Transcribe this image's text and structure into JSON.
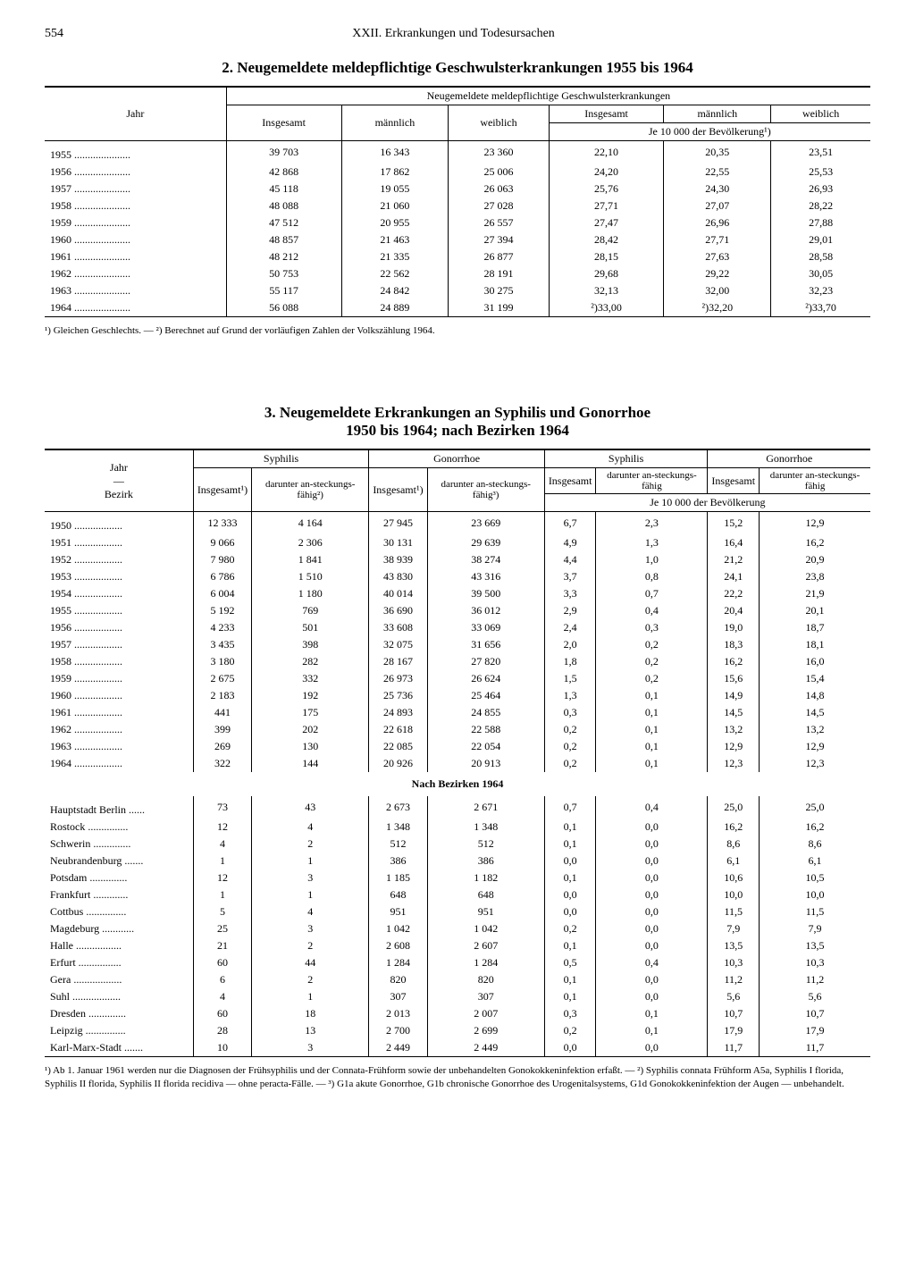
{
  "page_number": "554",
  "chapter": "XXII. Erkrankungen und Todesursachen",
  "table1": {
    "title": "2. Neugemeldete meldepflichtige Geschwulsterkrankungen 1955 bis 1964",
    "header_group": "Neugemeldete meldepflichtige Geschwulsterkrankungen",
    "col_year": "Jahr",
    "col_total": "Insgesamt",
    "col_male": "männlich",
    "col_female": "weiblich",
    "rate_header": "Je 10 000 der Bevölkerung¹)",
    "rows": [
      {
        "year": "1955",
        "dots": ".....................",
        "total": "39 703",
        "male": "16 343",
        "female": "23 360",
        "r_total": "22,10",
        "r_male": "20,35",
        "r_female": "23,51"
      },
      {
        "year": "1956",
        "dots": ".....................",
        "total": "42 868",
        "male": "17 862",
        "female": "25 006",
        "r_total": "24,20",
        "r_male": "22,55",
        "r_female": "25,53"
      },
      {
        "year": "1957",
        "dots": ".....................",
        "total": "45 118",
        "male": "19 055",
        "female": "26 063",
        "r_total": "25,76",
        "r_male": "24,30",
        "r_female": "26,93"
      },
      {
        "year": "1958",
        "dots": ".....................",
        "total": "48 088",
        "male": "21 060",
        "female": "27 028",
        "r_total": "27,71",
        "r_male": "27,07",
        "r_female": "28,22"
      },
      {
        "year": "1959",
        "dots": ".....................",
        "total": "47 512",
        "male": "20 955",
        "female": "26 557",
        "r_total": "27,47",
        "r_male": "26,96",
        "r_female": "27,88"
      },
      {
        "year": "1960",
        "dots": ".....................",
        "total": "48 857",
        "male": "21 463",
        "female": "27 394",
        "r_total": "28,42",
        "r_male": "27,71",
        "r_female": "29,01"
      },
      {
        "year": "1961",
        "dots": ".....................",
        "total": "48 212",
        "male": "21 335",
        "female": "26 877",
        "r_total": "28,15",
        "r_male": "27,63",
        "r_female": "28,58"
      },
      {
        "year": "1962",
        "dots": ".....................",
        "total": "50 753",
        "male": "22 562",
        "female": "28 191",
        "r_total": "29,68",
        "r_male": "29,22",
        "r_female": "30,05"
      },
      {
        "year": "1963",
        "dots": ".....................",
        "total": "55 117",
        "male": "24 842",
        "female": "30 275",
        "r_total": "32,13",
        "r_male": "32,00",
        "r_female": "32,23"
      },
      {
        "year": "1964",
        "dots": ".....................",
        "total": "56 088",
        "male": "24 889",
        "female": "31 199",
        "r_total": "²)33,00",
        "r_male": "²)32,20",
        "r_female": "²)33,70"
      }
    ],
    "footnote": "¹) Gleichen Geschlechts. — ²) Berechnet auf Grund der vorläufigen Zahlen der Volkszählung 1964."
  },
  "table2": {
    "title_line1": "3. Neugemeldete Erkrankungen an Syphilis und Gonorrhoe",
    "title_line2": "1950 bis 1964; nach Bezirken 1964",
    "col_year_district": "Jahr\n—\nBezirk",
    "col_year_line1": "Jahr",
    "col_year_sep": "—",
    "col_year_line2": "Bezirk",
    "group_syphilis": "Syphilis",
    "group_gonorrhoe": "Gonorrhoe",
    "col_total_sup": "Insgesamt¹)",
    "col_total": "Insgesamt",
    "col_infectious_sup": "darunter an-steckungs-fähig²)",
    "col_infectious_sup3": "darunter an-steckungs-fähig³)",
    "col_infectious": "darunter an-steckungs-fähig",
    "rate_header": "Je 10 000 der Bevölkerung",
    "years": [
      {
        "label": "1950",
        "dots": "..................",
        "s_tot": "12 333",
        "s_inf": "4 164",
        "g_tot": "27 945",
        "g_inf": "23 669",
        "rs_tot": "6,7",
        "rs_inf": "2,3",
        "rg_tot": "15,2",
        "rg_inf": "12,9"
      },
      {
        "label": "1951",
        "dots": "..................",
        "s_tot": "9 066",
        "s_inf": "2 306",
        "g_tot": "30 131",
        "g_inf": "29 639",
        "rs_tot": "4,9",
        "rs_inf": "1,3",
        "rg_tot": "16,4",
        "rg_inf": "16,2"
      },
      {
        "label": "1952",
        "dots": "..................",
        "s_tot": "7 980",
        "s_inf": "1 841",
        "g_tot": "38 939",
        "g_inf": "38 274",
        "rs_tot": "4,4",
        "rs_inf": "1,0",
        "rg_tot": "21,2",
        "rg_inf": "20,9"
      },
      {
        "label": "1953",
        "dots": "..................",
        "s_tot": "6 786",
        "s_inf": "1 510",
        "g_tot": "43 830",
        "g_inf": "43 316",
        "rs_tot": "3,7",
        "rs_inf": "0,8",
        "rg_tot": "24,1",
        "rg_inf": "23,8"
      },
      {
        "label": "1954",
        "dots": "..................",
        "s_tot": "6 004",
        "s_inf": "1 180",
        "g_tot": "40 014",
        "g_inf": "39 500",
        "rs_tot": "3,3",
        "rs_inf": "0,7",
        "rg_tot": "22,2",
        "rg_inf": "21,9"
      },
      {
        "label": "1955",
        "dots": "..................",
        "s_tot": "5 192",
        "s_inf": "769",
        "g_tot": "36 690",
        "g_inf": "36 012",
        "rs_tot": "2,9",
        "rs_inf": "0,4",
        "rg_tot": "20,4",
        "rg_inf": "20,1"
      },
      {
        "label": "1956",
        "dots": "..................",
        "s_tot": "4 233",
        "s_inf": "501",
        "g_tot": "33 608",
        "g_inf": "33 069",
        "rs_tot": "2,4",
        "rs_inf": "0,3",
        "rg_tot": "19,0",
        "rg_inf": "18,7"
      },
      {
        "label": "1957",
        "dots": "..................",
        "s_tot": "3 435",
        "s_inf": "398",
        "g_tot": "32 075",
        "g_inf": "31 656",
        "rs_tot": "2,0",
        "rs_inf": "0,2",
        "rg_tot": "18,3",
        "rg_inf": "18,1"
      },
      {
        "label": "1958",
        "dots": "..................",
        "s_tot": "3 180",
        "s_inf": "282",
        "g_tot": "28 167",
        "g_inf": "27 820",
        "rs_tot": "1,8",
        "rs_inf": "0,2",
        "rg_tot": "16,2",
        "rg_inf": "16,0"
      },
      {
        "label": "1959",
        "dots": "..................",
        "s_tot": "2 675",
        "s_inf": "332",
        "g_tot": "26 973",
        "g_inf": "26 624",
        "rs_tot": "1,5",
        "rs_inf": "0,2",
        "rg_tot": "15,6",
        "rg_inf": "15,4"
      },
      {
        "label": "1960",
        "dots": "..................",
        "s_tot": "2 183",
        "s_inf": "192",
        "g_tot": "25 736",
        "g_inf": "25 464",
        "rs_tot": "1,3",
        "rs_inf": "0,1",
        "rg_tot": "14,9",
        "rg_inf": "14,8"
      },
      {
        "label": "1961",
        "dots": "..................",
        "s_tot": "441",
        "s_inf": "175",
        "g_tot": "24 893",
        "g_inf": "24 855",
        "rs_tot": "0,3",
        "rs_inf": "0,1",
        "rg_tot": "14,5",
        "rg_inf": "14,5"
      },
      {
        "label": "1962",
        "dots": "..................",
        "s_tot": "399",
        "s_inf": "202",
        "g_tot": "22 618",
        "g_inf": "22 588",
        "rs_tot": "0,2",
        "rs_inf": "0,1",
        "rg_tot": "13,2",
        "rg_inf": "13,2"
      },
      {
        "label": "1963",
        "dots": "..................",
        "s_tot": "269",
        "s_inf": "130",
        "g_tot": "22 085",
        "g_inf": "22 054",
        "rs_tot": "0,2",
        "rs_inf": "0,1",
        "rg_tot": "12,9",
        "rg_inf": "12,9"
      },
      {
        "label": "1964",
        "dots": "..................",
        "s_tot": "322",
        "s_inf": "144",
        "g_tot": "20 926",
        "g_inf": "20 913",
        "rs_tot": "0,2",
        "rs_inf": "0,1",
        "rg_tot": "12,3",
        "rg_inf": "12,3"
      }
    ],
    "subheader": "Nach Bezirken 1964",
    "districts": [
      {
        "label": "Hauptstadt Berlin",
        "dots": "......",
        "s_tot": "73",
        "s_inf": "43",
        "g_tot": "2 673",
        "g_inf": "2 671",
        "rs_tot": "0,7",
        "rs_inf": "0,4",
        "rg_tot": "25,0",
        "rg_inf": "25,0"
      },
      {
        "label": "Rostock",
        "dots": "...............",
        "s_tot": "12",
        "s_inf": "4",
        "g_tot": "1 348",
        "g_inf": "1 348",
        "rs_tot": "0,1",
        "rs_inf": "0,0",
        "rg_tot": "16,2",
        "rg_inf": "16,2"
      },
      {
        "label": "Schwerin",
        "dots": "..............",
        "s_tot": "4",
        "s_inf": "2",
        "g_tot": "512",
        "g_inf": "512",
        "rs_tot": "0,1",
        "rs_inf": "0,0",
        "rg_tot": "8,6",
        "rg_inf": "8,6"
      },
      {
        "label": "Neubrandenburg",
        "dots": ".......",
        "s_tot": "1",
        "s_inf": "1",
        "g_tot": "386",
        "g_inf": "386",
        "rs_tot": "0,0",
        "rs_inf": "0,0",
        "rg_tot": "6,1",
        "rg_inf": "6,1"
      },
      {
        "label": "Potsdam",
        "dots": "..............",
        "s_tot": "12",
        "s_inf": "3",
        "g_tot": "1 185",
        "g_inf": "1 182",
        "rs_tot": "0,1",
        "rs_inf": "0,0",
        "rg_tot": "10,6",
        "rg_inf": "10,5"
      },
      {
        "label": "Frankfurt",
        "dots": ".............",
        "s_tot": "1",
        "s_inf": "1",
        "g_tot": "648",
        "g_inf": "648",
        "rs_tot": "0,0",
        "rs_inf": "0,0",
        "rg_tot": "10,0",
        "rg_inf": "10,0"
      },
      {
        "label": "Cottbus",
        "dots": "...............",
        "s_tot": "5",
        "s_inf": "4",
        "g_tot": "951",
        "g_inf": "951",
        "rs_tot": "0,0",
        "rs_inf": "0,0",
        "rg_tot": "11,5",
        "rg_inf": "11,5"
      },
      {
        "label": "Magdeburg",
        "dots": "............",
        "s_tot": "25",
        "s_inf": "3",
        "g_tot": "1 042",
        "g_inf": "1 042",
        "rs_tot": "0,2",
        "rs_inf": "0,0",
        "rg_tot": "7,9",
        "rg_inf": "7,9"
      },
      {
        "label": "Halle",
        "dots": ".................",
        "s_tot": "21",
        "s_inf": "2",
        "g_tot": "2 608",
        "g_inf": "2 607",
        "rs_tot": "0,1",
        "rs_inf": "0,0",
        "rg_tot": "13,5",
        "rg_inf": "13,5"
      },
      {
        "label": "Erfurt",
        "dots": "................",
        "s_tot": "60",
        "s_inf": "44",
        "g_tot": "1 284",
        "g_inf": "1 284",
        "rs_tot": "0,5",
        "rs_inf": "0,4",
        "rg_tot": "10,3",
        "rg_inf": "10,3"
      },
      {
        "label": "Gera",
        "dots": "..................",
        "s_tot": "6",
        "s_inf": "2",
        "g_tot": "820",
        "g_inf": "820",
        "rs_tot": "0,1",
        "rs_inf": "0,0",
        "rg_tot": "11,2",
        "rg_inf": "11,2"
      },
      {
        "label": "Suhl",
        "dots": "..................",
        "s_tot": "4",
        "s_inf": "1",
        "g_tot": "307",
        "g_inf": "307",
        "rs_tot": "0,1",
        "rs_inf": "0,0",
        "rg_tot": "5,6",
        "rg_inf": "5,6"
      },
      {
        "label": "Dresden",
        "dots": "..............",
        "s_tot": "60",
        "s_inf": "18",
        "g_tot": "2 013",
        "g_inf": "2 007",
        "rs_tot": "0,3",
        "rs_inf": "0,1",
        "rg_tot": "10,7",
        "rg_inf": "10,7"
      },
      {
        "label": "Leipzig",
        "dots": "...............",
        "s_tot": "28",
        "s_inf": "13",
        "g_tot": "2 700",
        "g_inf": "2 699",
        "rs_tot": "0,2",
        "rs_inf": "0,1",
        "rg_tot": "17,9",
        "rg_inf": "17,9"
      },
      {
        "label": "Karl-Marx-Stadt",
        "dots": ".......",
        "s_tot": "10",
        "s_inf": "3",
        "g_tot": "2 449",
        "g_inf": "2 449",
        "rs_tot": "0,0",
        "rs_inf": "0,0",
        "rg_tot": "11,7",
        "rg_inf": "11,7"
      }
    ],
    "footnote": "¹) Ab 1. Januar 1961 werden nur die Diagnosen der Frühsyphilis und der Connata-Frühform sowie der unbehandelten Gonokokkeninfektion erfaßt. — ²) Syphilis connata Frühform A5a, Syphilis I florida, Syphilis II florida, Syphilis II florida recidiva — ohne peracta-Fälle. — ³) G1a akute Gonorrhoe, G1b chronische Gonorrhoe des Urogenitalsystems, G1d Gonokokkeninfektion der Augen — unbehandelt."
  }
}
